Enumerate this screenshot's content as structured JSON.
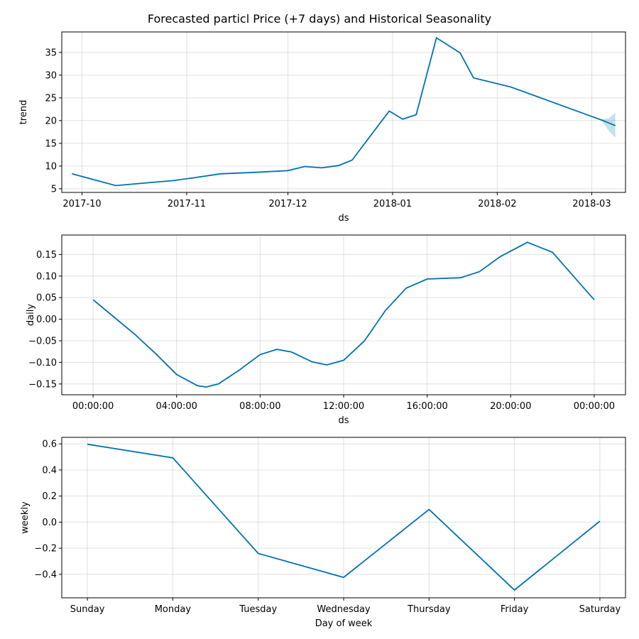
{
  "figure": {
    "title": "Forecasted particl Price (+7 days) and Historical Seasonality"
  },
  "chart_data": [
    {
      "type": "line",
      "name": "trend-panel",
      "xlabel": "ds",
      "ylabel": "trend",
      "x_axis": "date",
      "xlim": [
        "2017-09-25",
        "2018-03-11"
      ],
      "ylim": [
        4.2,
        39.5
      ],
      "grid": true,
      "xticks": [
        {
          "value": "2017-10-01",
          "label": "2017-10"
        },
        {
          "value": "2017-11-01",
          "label": "2017-11"
        },
        {
          "value": "2017-12-01",
          "label": "2017-12"
        },
        {
          "value": "2018-01-01",
          "label": "2018-01"
        },
        {
          "value": "2018-02-01",
          "label": "2018-02"
        },
        {
          "value": "2018-03-01",
          "label": "2018-03"
        }
      ],
      "yticks": [
        5,
        10,
        15,
        20,
        25,
        30,
        35
      ],
      "series": [
        {
          "x": [
            "2017-09-28",
            "2017-10-11",
            "2017-10-20",
            "2017-10-28",
            "2017-11-03",
            "2017-11-11",
            "2017-11-21",
            "2017-12-01",
            "2017-12-06",
            "2017-12-11",
            "2017-12-16",
            "2017-12-20",
            "2017-12-31",
            "2018-01-04",
            "2018-01-08",
            "2018-01-14",
            "2018-01-21",
            "2018-01-25",
            "2018-02-05",
            "2018-03-04",
            "2018-03-08"
          ],
          "y": [
            8.3,
            5.7,
            6.3,
            6.8,
            7.4,
            8.3,
            8.6,
            9.0,
            9.9,
            9.6,
            10.1,
            11.3,
            22.1,
            20.3,
            21.3,
            38.2,
            34.9,
            29.4,
            27.4,
            20.1,
            18.9
          ]
        }
      ],
      "uncertainty": {
        "x": [
          "2018-03-04",
          "2018-03-06",
          "2018-03-08"
        ],
        "lower": [
          19.9,
          17.8,
          16.2
        ],
        "upper": [
          20.3,
          20.5,
          21.7
        ]
      }
    },
    {
      "type": "line",
      "name": "daily-panel",
      "xlabel": "ds",
      "ylabel": "daily",
      "xlim": [
        -1.5,
        25.5
      ],
      "ylim": [
        -0.175,
        0.195
      ],
      "grid": true,
      "xticks": [
        {
          "value": 0,
          "label": "00:00:00"
        },
        {
          "value": 4,
          "label": "04:00:00"
        },
        {
          "value": 8,
          "label": "08:00:00"
        },
        {
          "value": 12,
          "label": "12:00:00"
        },
        {
          "value": 16,
          "label": "16:00:00"
        },
        {
          "value": 20,
          "label": "20:00:00"
        },
        {
          "value": 24,
          "label": "00:00:00"
        }
      ],
      "yticks": [
        {
          "value": -0.15,
          "label": "−0.15"
        },
        {
          "value": -0.1,
          "label": "−0.10"
        },
        {
          "value": -0.05,
          "label": "−0.05"
        },
        {
          "value": 0.0,
          "label": "0.00"
        },
        {
          "value": 0.05,
          "label": "0.05"
        },
        {
          "value": 0.1,
          "label": "0.10"
        },
        {
          "value": 0.15,
          "label": "0.15"
        }
      ],
      "series": [
        {
          "x": [
            0,
            1,
            2,
            3,
            4,
            5,
            5.4,
            6,
            7,
            8,
            8.8,
            9.5,
            10.5,
            11.2,
            12,
            13,
            14,
            15,
            16,
            17,
            17.6,
            18.5,
            19.5,
            20.8,
            22,
            23,
            24
          ],
          "y": [
            0.045,
            0.005,
            -0.035,
            -0.08,
            -0.128,
            -0.154,
            -0.157,
            -0.15,
            -0.118,
            -0.082,
            -0.07,
            -0.076,
            -0.099,
            -0.106,
            -0.095,
            -0.05,
            0.02,
            0.072,
            0.093,
            0.095,
            0.096,
            0.11,
            0.145,
            0.178,
            0.155,
            0.1,
            0.045
          ]
        }
      ]
    },
    {
      "type": "line",
      "name": "weekly-panel",
      "xlabel": "Day of week",
      "ylabel": "weekly",
      "xlim": [
        -0.3,
        6.3
      ],
      "ylim": [
        -0.58,
        0.65
      ],
      "grid": true,
      "categories": [
        "Sunday",
        "Monday",
        "Tuesday",
        "Wednesday",
        "Thursday",
        "Friday",
        "Saturday"
      ],
      "yticks": [
        {
          "value": -0.4,
          "label": "−0.4"
        },
        {
          "value": -0.2,
          "label": "−0.2"
        },
        {
          "value": 0.0,
          "label": "0.0"
        },
        {
          "value": 0.2,
          "label": "0.2"
        },
        {
          "value": 0.4,
          "label": "0.4"
        },
        {
          "value": 0.6,
          "label": "0.6"
        }
      ],
      "series": [
        {
          "values": [
            0.597,
            0.493,
            -0.24,
            -0.423,
            0.097,
            -0.52,
            0.008
          ]
        }
      ]
    }
  ]
}
